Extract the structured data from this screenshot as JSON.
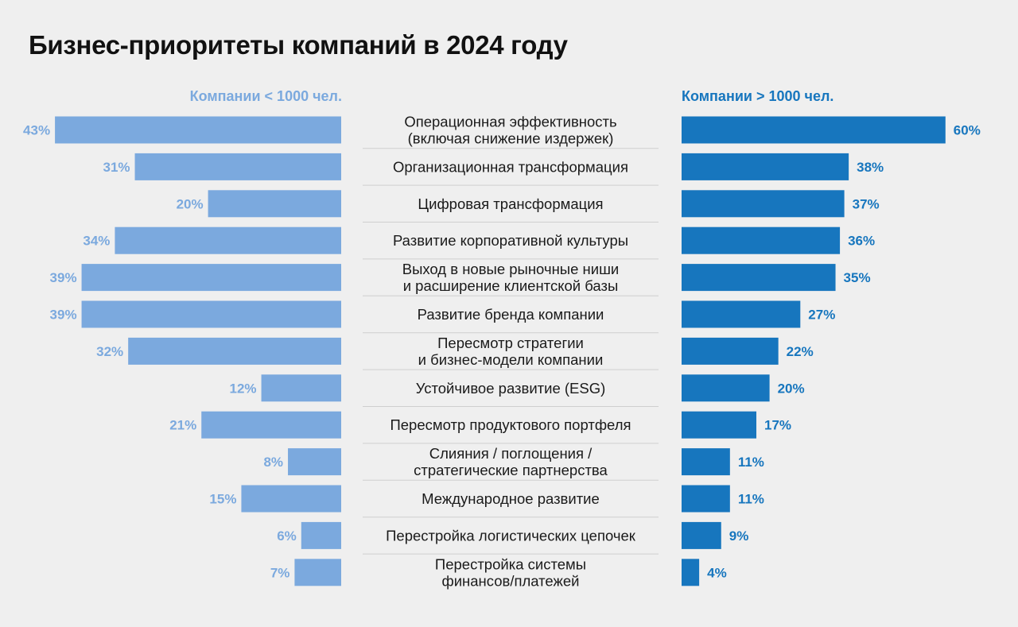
{
  "chart_data": {
    "type": "bar",
    "title": "Бизнес-приоритеты компаний в 2024 году",
    "categories": [
      "Операционная эффективность\n(включая снижение издержек)",
      "Организационная трансформация",
      "Цифровая трансформация",
      "Развитие корпоративной культуры",
      "Выход в новые рыночные ниши\nи расширение клиентской базы",
      "Развитие бренда компании",
      "Пересмотр стратегии\nи бизнес-модели компании",
      "Устойчивое развитие (ESG)",
      "Пересмотр продуктового портфеля",
      "Слияния / поглощения /\nстратегические партнерства",
      "Международное развитие",
      "Перестройка логистических цепочек",
      "Перестройка системы\nфинансов/платежей"
    ],
    "series": [
      {
        "name": "Компании < 1000 чел.",
        "color": "#7ba9de",
        "values": [
          43,
          31,
          20,
          34,
          39,
          39,
          32,
          12,
          21,
          8,
          15,
          6,
          7
        ]
      },
      {
        "name": "Компании > 1000 чел.",
        "color": "#1776be",
        "values": [
          60,
          38,
          37,
          36,
          35,
          27,
          22,
          20,
          17,
          11,
          11,
          9,
          4
        ]
      }
    ],
    "value_suffix": "%"
  }
}
